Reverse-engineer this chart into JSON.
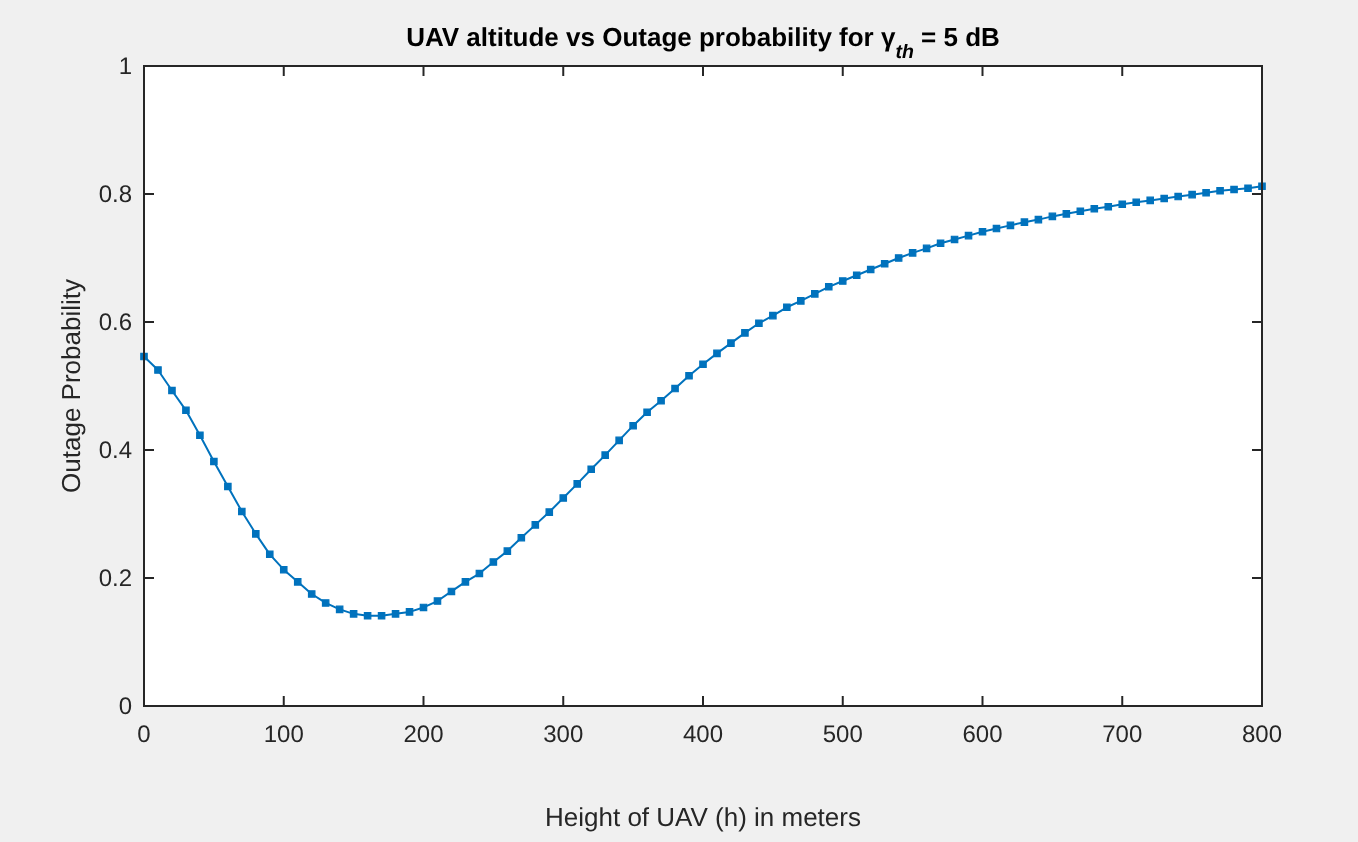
{
  "chart_data": {
    "type": "line",
    "title": "UAV altitude vs Outage probability for γ$_{th}$ = 5 dB",
    "xlabel": "Height of UAV (h) in meters",
    "ylabel": "Outage Probability",
    "x": [
      0,
      10,
      20,
      30,
      40,
      50,
      60,
      70,
      80,
      90,
      100,
      110,
      120,
      130,
      140,
      150,
      160,
      170,
      180,
      190,
      200,
      210,
      220,
      230,
      240,
      250,
      260,
      270,
      280,
      290,
      300,
      310,
      320,
      330,
      340,
      350,
      360,
      370,
      380,
      390,
      400,
      410,
      420,
      430,
      440,
      450,
      460,
      470,
      480,
      490,
      500,
      510,
      520,
      530,
      540,
      550,
      560,
      570,
      580,
      590,
      600,
      610,
      620,
      630,
      640,
      650,
      660,
      670,
      680,
      690,
      700,
      710,
      720,
      730,
      740,
      750,
      760,
      770,
      780,
      790,
      800
    ],
    "series": [
      {
        "color": "#0072bd",
        "values": [
          0.546,
          0.525,
          0.493,
          0.462,
          0.423,
          0.382,
          0.343,
          0.304,
          0.269,
          0.237,
          0.213,
          0.194,
          0.175,
          0.161,
          0.151,
          0.144,
          0.141,
          0.141,
          0.144,
          0.147,
          0.154,
          0.164,
          0.179,
          0.194,
          0.207,
          0.225,
          0.242,
          0.263,
          0.283,
          0.303,
          0.325,
          0.347,
          0.37,
          0.392,
          0.415,
          0.438,
          0.459,
          0.477,
          0.496,
          0.516,
          0.534,
          0.551,
          0.567,
          0.583,
          0.598,
          0.61,
          0.623,
          0.633,
          0.644,
          0.655,
          0.664,
          0.673,
          0.682,
          0.691,
          0.7,
          0.708,
          0.715,
          0.723,
          0.729,
          0.735,
          0.741,
          0.746,
          0.751,
          0.756,
          0.76,
          0.765,
          0.769,
          0.773,
          0.777,
          0.78,
          0.784,
          0.787,
          0.79,
          0.793,
          0.796,
          0.799,
          0.802,
          0.805,
          0.807,
          0.809,
          0.812
        ]
      }
    ],
    "xlim": [
      0,
      800
    ],
    "xticks": [
      0,
      100,
      200,
      300,
      400,
      500,
      600,
      700,
      800
    ],
    "ylim": [
      0,
      1
    ],
    "yticks": [
      0,
      0.2,
      0.4,
      0.6,
      0.8,
      1
    ],
    "grid": false,
    "marker": "square",
    "line_style": "solid"
  }
}
